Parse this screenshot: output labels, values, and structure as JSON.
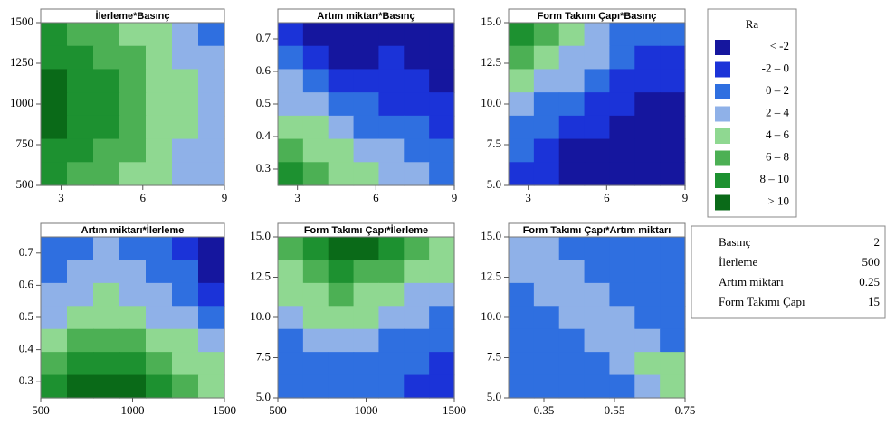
{
  "contour_levels": {
    "title": "Ra",
    "breaks": [
      -2,
      0,
      2,
      4,
      6,
      8,
      10
    ],
    "labels": [
      "<  -2",
      "-2  –  0",
      "0  –  2",
      "2  –  4",
      "4  –  6",
      "6  –  8",
      "8  –  10",
      ">  10"
    ],
    "colors": [
      "#15169e",
      "#1b33d8",
      "#2f6fe0",
      "#8fb1e8",
      "#8fd891",
      "#4cb054",
      "#1d9130",
      "#0a6a18"
    ]
  },
  "hold_values": {
    "rows": [
      [
        "Basınç",
        2
      ],
      [
        "İlerleme",
        500
      ],
      [
        "Artım miktarı",
        0.25
      ],
      [
        "Form Takımı Çapı",
        15
      ]
    ]
  },
  "chart_data": [
    {
      "type": "contour",
      "title": "İlerleme*Basınç",
      "xlim": [
        2.25,
        9
      ],
      "xticks": [
        3,
        6,
        9
      ],
      "ylim": [
        500,
        1500
      ],
      "yticks": [
        500,
        750,
        1000,
        1250,
        1500
      ],
      "z": [
        [
          8,
          7,
          6,
          5,
          4,
          3,
          1
        ],
        [
          9,
          8,
          7,
          6,
          5,
          3.5,
          2.5
        ],
        [
          10.5,
          9,
          8,
          6.5,
          5,
          4,
          3
        ],
        [
          10.5,
          9.5,
          8,
          7,
          5.5,
          4.5,
          3
        ],
        [
          10.5,
          9,
          8,
          6.5,
          5,
          4,
          3
        ],
        [
          9.5,
          8.5,
          7,
          6,
          5,
          3.5,
          2.5
        ],
        [
          8.5,
          7.5,
          6.5,
          5,
          4,
          3,
          2
        ]
      ]
    },
    {
      "type": "contour",
      "title": "Artım miktarı*Basınç",
      "xlim": [
        2.25,
        9
      ],
      "xticks": [
        3,
        6,
        9
      ],
      "ylim": [
        0.25,
        0.75
      ],
      "yticks": [
        0.3,
        0.4,
        0.5,
        0.6,
        0.7
      ],
      "z": [
        [
          -1,
          -2.5,
          -3,
          -3,
          -2.5,
          -3,
          -3
        ],
        [
          0.5,
          -1,
          -2.2,
          -2.5,
          -1.5,
          -2.5,
          -3
        ],
        [
          2.5,
          1,
          -0.5,
          -1.5,
          -1,
          -1.8,
          -2.5
        ],
        [
          3.5,
          2.5,
          1,
          0,
          -0.5,
          -1,
          -1.5
        ],
        [
          5,
          4,
          2.5,
          1.5,
          0.5,
          0,
          -0.5
        ],
        [
          6.5,
          5,
          4,
          3,
          2,
          1,
          0
        ],
        [
          8.5,
          6.5,
          5,
          4,
          3,
          2,
          1
        ]
      ]
    },
    {
      "type": "contour",
      "title": "Form Takımı Çapı*Basınç",
      "xlim": [
        2.25,
        9
      ],
      "xticks": [
        3,
        6,
        9
      ],
      "ylim": [
        5,
        15
      ],
      "yticks": [
        {
          "value": 5,
          "label": "5.0"
        },
        7.5,
        {
          "value": 10,
          "label": "10.0"
        },
        12.5,
        {
          "value": 15,
          "label": "15.0"
        }
      ],
      "z": [
        [
          8.5,
          6.5,
          5,
          3.5,
          1.5,
          0.5,
          0
        ],
        [
          6.5,
          5,
          3.5,
          2,
          0.5,
          -0.5,
          -0.5
        ],
        [
          4.5,
          3,
          2,
          0.5,
          -0.5,
          -1.5,
          -1.5
        ],
        [
          2.5,
          1.5,
          0.5,
          -0.5,
          -1.5,
          -2.5,
          -2.5
        ],
        [
          1,
          0,
          -1,
          -2,
          -2.5,
          -3,
          -3
        ],
        [
          0,
          -1,
          -2.5,
          -3,
          -3,
          -3.5,
          -3.5
        ],
        [
          -1,
          -2,
          -3,
          -3.5,
          -3.5,
          -4,
          -4
        ]
      ]
    },
    {
      "type": "contour",
      "title": "Artım miktarı*İlerleme",
      "xlim": [
        500,
        1500
      ],
      "xticks": [
        500,
        1000,
        1500
      ],
      "ylim": [
        0.25,
        0.75
      ],
      "yticks": [
        0.3,
        0.4,
        0.5,
        0.6,
        0.7
      ],
      "z": [
        [
          0.5,
          1.5,
          2.2,
          1.5,
          0.5,
          -0.5,
          -2.5
        ],
        [
          1,
          2.5,
          3,
          2.5,
          1,
          0,
          -2.5
        ],
        [
          2,
          3.5,
          4,
          3.5,
          2,
          1,
          -0.5
        ],
        [
          3.5,
          5,
          5.5,
          5,
          3.5,
          2.5,
          1
        ],
        [
          5,
          6.5,
          7,
          6.5,
          5,
          4,
          2.5
        ],
        [
          6.5,
          8,
          8.5,
          8,
          6.5,
          5.5,
          4
        ],
        [
          8,
          10.5,
          10.5,
          10,
          8.5,
          7,
          5.5
        ]
      ]
    },
    {
      "type": "contour",
      "title": "Form Takımı Çapı*İlerleme",
      "xlim": [
        500,
        1500
      ],
      "xticks": [
        500,
        1000,
        1500
      ],
      "ylim": [
        5,
        15
      ],
      "yticks": [
        {
          "value": 5,
          "label": "5.0"
        },
        7.5,
        {
          "value": 10,
          "label": "10.0"
        },
        12.5,
        {
          "value": 15,
          "label": "15.0"
        }
      ],
      "z": [
        [
          7,
          9,
          10.5,
          10,
          8.5,
          6.5,
          5
        ],
        [
          5.5,
          7.5,
          8,
          7.5,
          6.5,
          5,
          4
        ],
        [
          4,
          5.5,
          6,
          5.5,
          4.5,
          3.5,
          2.5
        ],
        [
          3,
          4,
          4.5,
          4,
          3,
          2,
          1
        ],
        [
          1.5,
          2.5,
          3,
          2.5,
          1.5,
          1,
          0
        ],
        [
          0.5,
          1,
          1.5,
          1,
          0.5,
          0,
          -0.5
        ],
        [
          0,
          0.5,
          0.5,
          0.5,
          0,
          -0.5,
          -1
        ]
      ]
    },
    {
      "type": "contour",
      "title": "Form Takımı Çapı*Artım miktarı",
      "xlim": [
        0.25,
        0.75
      ],
      "xticks": [
        0.35,
        0.55,
        0.75
      ],
      "ylim": [
        5,
        15
      ],
      "yticks": [
        {
          "value": 5,
          "label": "5.0"
        },
        7.5,
        {
          "value": 10,
          "label": "10.0"
        },
        12.5,
        {
          "value": 15,
          "label": "15.0"
        }
      ],
      "z": [
        [
          3.5,
          2.5,
          1.5,
          0.5,
          0.5,
          0.5,
          0.5
        ],
        [
          2.5,
          3,
          2,
          1,
          0.5,
          0.5,
          0.5
        ],
        [
          1,
          2.5,
          3,
          2,
          1,
          0.5,
          0.5
        ],
        [
          0.5,
          1,
          2.5,
          3,
          2,
          1,
          1
        ],
        [
          0.5,
          0.5,
          1,
          2.5,
          3.5,
          2.5,
          1.5
        ],
        [
          0.5,
          0.5,
          0.5,
          1,
          2.5,
          4,
          4.5
        ],
        [
          0.5,
          0.5,
          0.5,
          0.5,
          1.5,
          3.5,
          5.5
        ]
      ]
    }
  ]
}
